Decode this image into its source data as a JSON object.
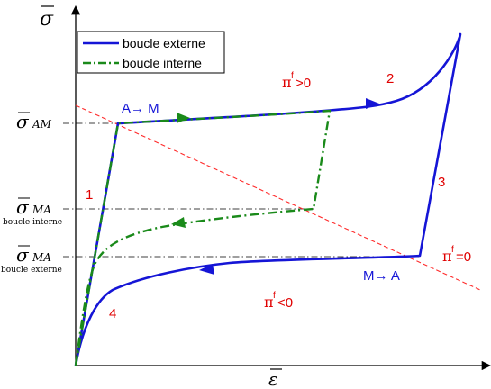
{
  "axes": {
    "y_symbol": "σ",
    "x_symbol": "ε"
  },
  "legend": {
    "outer": "boucle externe",
    "inner": "boucle interne"
  },
  "y_labels": {
    "sigma_am_symbol": "σ",
    "sigma_am_sub": "AM",
    "sigma_ma_inner_symbol": "σ",
    "sigma_ma_inner_sub": "MA",
    "sigma_ma_inner_caption": "boucle interne",
    "sigma_ma_outer_symbol": "σ",
    "sigma_ma_outer_sub": "MA",
    "sigma_ma_outer_caption": "boucle externe"
  },
  "annotations": {
    "a_to_m": "A→ M",
    "m_to_a": "M→ A",
    "pi_pos": "π",
    "pi_pos_sup": "f",
    "pi_pos_rel": ">0",
    "pi_zero": "π",
    "pi_zero_sup": "f",
    "pi_zero_rel": "=0",
    "pi_neg": "π",
    "pi_neg_sup": "f",
    "pi_neg_rel": "<0",
    "n1": "1",
    "n2": "2",
    "n3": "3",
    "n4": "4"
  },
  "colors": {
    "outer_loop": "#1515d6",
    "inner_loop": "#1a8a1a",
    "dashed_red": "#ff2a2a",
    "label_red": "#e00000",
    "label_blue": "#1515d6"
  }
}
